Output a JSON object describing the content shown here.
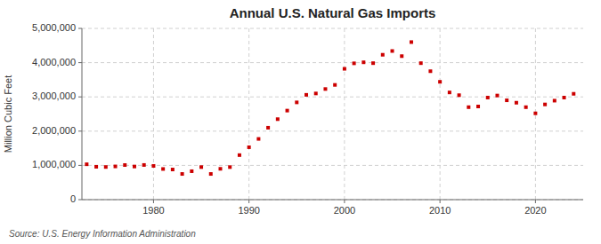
{
  "chart_data": {
    "type": "scatter",
    "title": "Annual U.S. Natural Gas Imports",
    "ylabel": "Million Cubic Feet",
    "annotations": [
      "Source: U.S. Energy Information Administration"
    ],
    "x": [
      1973,
      1974,
      1975,
      1976,
      1977,
      1978,
      1979,
      1980,
      1981,
      1982,
      1983,
      1984,
      1985,
      1986,
      1987,
      1988,
      1989,
      1990,
      1991,
      1992,
      1993,
      1994,
      1995,
      1996,
      1997,
      1998,
      1999,
      2000,
      2001,
      2002,
      2003,
      2004,
      2005,
      2006,
      2007,
      2008,
      2009,
      2010,
      2011,
      2012,
      2013,
      2014,
      2015,
      2016,
      2017,
      2018,
      2019,
      2020,
      2021,
      2022,
      2023,
      2024
    ],
    "values": [
      1032700,
      960000,
      953600,
      970000,
      1010000,
      967000,
      1012000,
      985000,
      895000,
      880000,
      750000,
      830000,
      950000,
      750000,
      900000,
      950000,
      1300000,
      1530000,
      1773000,
      2100000,
      2350000,
      2600000,
      2840000,
      3060000,
      3100000,
      3230000,
      3350000,
      3820000,
      3980000,
      4010000,
      3985000,
      4230000,
      4340000,
      4190000,
      4600000,
      3985000,
      3750000,
      3440000,
      3130000,
      3050000,
      2700000,
      2720000,
      2980000,
      3040000,
      2900000,
      2830000,
      2700000,
      2520000,
      2780000,
      2890000,
      2980000,
      3090000
    ],
    "color": "#cc0000",
    "marker": "square",
    "xlim": [
      1972.5,
      2025
    ],
    "xticks": [
      1980,
      1990,
      2000,
      2010,
      2020
    ],
    "ylim": [
      0,
      5000000
    ],
    "yticks": [
      0,
      {
        "value": 1000000,
        "label": "1,000,000"
      },
      {
        "value": 2000000,
        "label": "2,000,000"
      },
      {
        "value": 3000000,
        "label": "3,000,000"
      },
      {
        "value": 4000000,
        "label": "4,000,000"
      },
      {
        "value": 5000000,
        "label": "5,000,000"
      }
    ],
    "grid": true
  }
}
